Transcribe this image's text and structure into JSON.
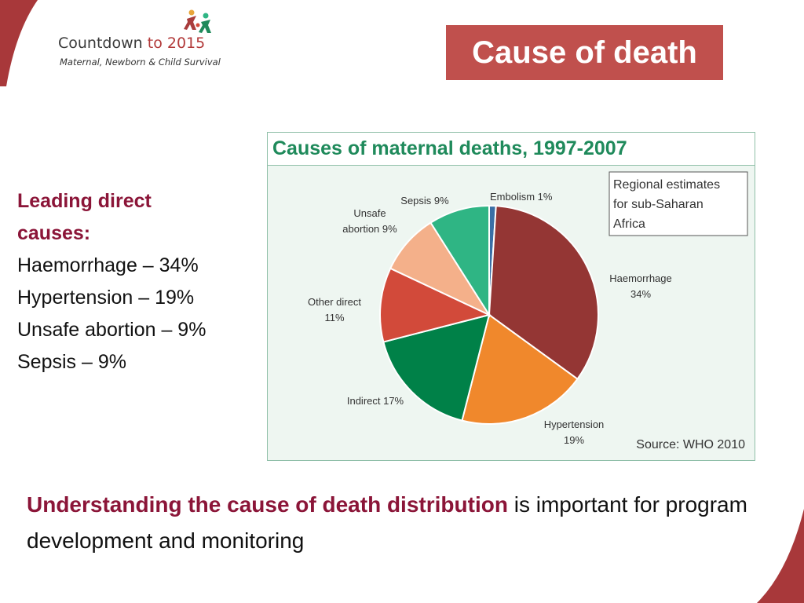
{
  "logo": {
    "name_part1": "Countdown",
    "name_part2": "to 2015",
    "subtitle": "Maternal, Newborn & Child Survival"
  },
  "slide_title": "Cause of death",
  "left_panel": {
    "heading_line1": "Leading direct",
    "heading_line2": "causes:",
    "items": [
      "Haemorrhage – 34%",
      "Hypertension – 19%",
      "Unsafe abortion – 9%",
      "Sepsis – 9%"
    ]
  },
  "bottom_text": {
    "emphasis": "Understanding the cause of death distribution",
    "rest": " is important for program development and monitoring"
  },
  "colors": {
    "title_bg": "#c0504d",
    "accent_text": "#8b1538",
    "chart_title": "#1f8a5b",
    "chart_border": "#8fbfa8"
  },
  "chart_data": {
    "type": "pie",
    "title": "Causes of maternal deaths, 1997-2007",
    "annotation_lines": [
      "Regional estimates",
      "for sub-Saharan",
      "Africa"
    ],
    "source": "Source: WHO 2010",
    "start_angle_deg": 0,
    "slices": [
      {
        "key": "embolism",
        "label_lines": [
          "Embolism 1%"
        ],
        "value": 1,
        "color": "#3a6fa5"
      },
      {
        "key": "haemorrhage",
        "label_lines": [
          "Haemorrhage",
          "34%"
        ],
        "value": 34,
        "color": "#943634"
      },
      {
        "key": "hypertension",
        "label_lines": [
          "Hypertension",
          "19%"
        ],
        "value": 19,
        "color": "#f0882c"
      },
      {
        "key": "indirect",
        "label_lines": [
          "Indirect 17%"
        ],
        "value": 17,
        "color": "#008148"
      },
      {
        "key": "other-direct",
        "label_lines": [
          "Other direct",
          "11%"
        ],
        "value": 11,
        "color": "#d24a3a"
      },
      {
        "key": "unsafe-abortion",
        "label_lines": [
          "Unsafe",
          "abortion 9%"
        ],
        "value": 9,
        "color": "#f4b08a"
      },
      {
        "key": "sepsis",
        "label_lines": [
          "Sepsis 9%"
        ],
        "value": 9,
        "color": "#2fb584"
      }
    ]
  }
}
